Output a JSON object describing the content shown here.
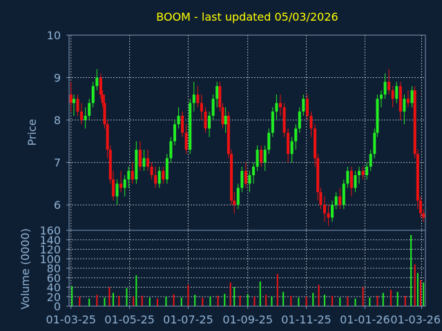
{
  "title": "BOOM - last updated 05/03/2026",
  "colors": {
    "background": "#0f1f33",
    "up": "#22ee22",
    "down": "#ee1111",
    "title": "#ffff00",
    "axis_text": "#8fb2d4"
  },
  "chart_data": [
    {
      "type": "candlestick",
      "ylabel": "Price",
      "ylim": [
        5.4,
        10
      ],
      "yticks": [
        "10",
        "9",
        "8",
        "7",
        "6"
      ],
      "grid": true,
      "ohlc": [
        [
          "2025-03-01",
          8.6,
          8.9,
          8.2,
          8.4
        ],
        [
          "2025-03-04",
          8.4,
          8.6,
          8.1,
          8.5
        ],
        [
          "2025-03-08",
          8.5,
          8.6,
          8.1,
          8.2
        ],
        [
          "2025-03-12",
          8.2,
          8.4,
          7.9,
          8.0
        ],
        [
          "2025-03-16",
          8.0,
          8.3,
          7.8,
          8.1
        ],
        [
          "2025-03-20",
          8.1,
          8.5,
          8.0,
          8.4
        ],
        [
          "2025-03-24",
          8.4,
          8.9,
          8.3,
          8.8
        ],
        [
          "2025-03-28",
          8.8,
          9.2,
          8.7,
          9.0
        ],
        [
          "2025-04-01",
          9.0,
          9.1,
          8.5,
          8.6
        ],
        [
          "2025-04-03",
          8.6,
          8.7,
          8.3,
          8.4
        ],
        [
          "2025-04-05",
          8.4,
          8.6,
          7.8,
          7.9
        ],
        [
          "2025-04-08",
          7.9,
          8.0,
          7.1,
          7.3
        ],
        [
          "2025-04-11",
          7.3,
          7.4,
          6.5,
          6.6
        ],
        [
          "2025-04-14",
          6.6,
          6.8,
          6.1,
          6.2
        ],
        [
          "2025-04-18",
          6.2,
          6.6,
          6.0,
          6.5
        ],
        [
          "2025-04-22",
          6.5,
          6.8,
          6.3,
          6.4
        ],
        [
          "2025-04-26",
          6.4,
          6.7,
          6.2,
          6.6
        ],
        [
          "2025-04-30",
          6.6,
          6.9,
          6.4,
          6.8
        ],
        [
          "2025-05-04",
          6.8,
          7.0,
          6.5,
          6.6
        ],
        [
          "2025-05-08",
          6.6,
          7.5,
          6.5,
          7.3
        ],
        [
          "2025-05-12",
          7.3,
          7.5,
          6.8,
          6.9
        ],
        [
          "2025-05-16",
          6.9,
          7.3,
          6.8,
          7.1
        ],
        [
          "2025-05-20",
          7.1,
          7.3,
          6.8,
          6.9
        ],
        [
          "2025-05-24",
          6.9,
          7.0,
          6.6,
          6.7
        ],
        [
          "2025-05-28",
          6.7,
          6.9,
          6.4,
          6.5
        ],
        [
          "2025-06-01",
          6.5,
          6.9,
          6.4,
          6.8
        ],
        [
          "2025-06-05",
          6.8,
          6.9,
          6.5,
          6.6
        ],
        [
          "2025-06-09",
          6.6,
          7.2,
          6.5,
          7.1
        ],
        [
          "2025-06-13",
          7.1,
          7.6,
          7.0,
          7.5
        ],
        [
          "2025-06-17",
          7.5,
          8.0,
          7.4,
          7.9
        ],
        [
          "2025-06-21",
          7.9,
          8.3,
          7.8,
          8.1
        ],
        [
          "2025-06-25",
          8.1,
          8.2,
          7.6,
          7.7
        ],
        [
          "2025-06-29",
          7.7,
          7.9,
          7.2,
          7.3
        ],
        [
          "2025-07-03",
          7.3,
          8.5,
          7.2,
          8.4
        ],
        [
          "2025-07-07",
          8.4,
          8.9,
          8.2,
          8.6
        ],
        [
          "2025-07-11",
          8.6,
          8.8,
          8.3,
          8.4
        ],
        [
          "2025-07-15",
          8.4,
          8.6,
          8.0,
          8.2
        ],
        [
          "2025-07-19",
          8.2,
          8.3,
          7.7,
          7.8
        ],
        [
          "2025-07-23",
          7.8,
          8.2,
          7.6,
          8.1
        ],
        [
          "2025-07-27",
          8.1,
          8.6,
          8.0,
          8.5
        ],
        [
          "2025-07-31",
          8.5,
          8.9,
          8.3,
          8.8
        ],
        [
          "2025-08-03",
          8.8,
          8.9,
          8.2,
          8.3
        ],
        [
          "2025-08-06",
          8.3,
          8.4,
          7.8,
          7.9
        ],
        [
          "2025-08-09",
          7.9,
          8.3,
          7.7,
          8.1
        ],
        [
          "2025-08-12",
          8.1,
          8.2,
          7.1,
          7.2
        ],
        [
          "2025-08-15",
          7.2,
          7.3,
          6.0,
          6.1
        ],
        [
          "2025-08-18",
          6.1,
          6.3,
          5.8,
          6.0
        ],
        [
          "2025-08-22",
          6.0,
          6.5,
          5.9,
          6.4
        ],
        [
          "2025-08-26",
          6.4,
          6.9,
          6.3,
          6.8
        ],
        [
          "2025-08-30",
          6.8,
          7.0,
          6.4,
          6.5
        ],
        [
          "2025-09-03",
          6.5,
          6.8,
          6.3,
          6.7
        ],
        [
          "2025-09-07",
          6.7,
          7.0,
          6.5,
          6.9
        ],
        [
          "2025-09-11",
          6.9,
          7.4,
          6.8,
          7.3
        ],
        [
          "2025-09-15",
          7.3,
          7.4,
          6.9,
          7.0
        ],
        [
          "2025-09-19",
          7.0,
          7.4,
          6.8,
          7.3
        ],
        [
          "2025-09-23",
          7.3,
          7.8,
          7.2,
          7.7
        ],
        [
          "2025-09-27",
          7.7,
          8.3,
          7.6,
          8.2
        ],
        [
          "2025-10-01",
          8.2,
          8.6,
          8.0,
          8.4
        ],
        [
          "2025-10-05",
          8.4,
          8.6,
          8.1,
          8.3
        ],
        [
          "2025-10-09",
          8.3,
          8.4,
          7.6,
          7.7
        ],
        [
          "2025-10-13",
          7.7,
          7.8,
          7.0,
          7.2
        ],
        [
          "2025-10-17",
          7.2,
          7.6,
          7.0,
          7.5
        ],
        [
          "2025-10-21",
          7.5,
          7.9,
          7.3,
          7.8
        ],
        [
          "2025-10-25",
          7.8,
          8.3,
          7.7,
          8.2
        ],
        [
          "2025-10-29",
          8.2,
          8.6,
          8.1,
          8.5
        ],
        [
          "2025-11-02",
          8.5,
          8.6,
          8.0,
          8.1
        ],
        [
          "2025-11-06",
          8.1,
          8.2,
          7.6,
          7.8
        ],
        [
          "2025-11-10",
          7.8,
          7.9,
          6.9,
          7.1
        ],
        [
          "2025-11-13",
          7.1,
          7.2,
          6.1,
          6.3
        ],
        [
          "2025-11-16",
          6.3,
          6.4,
          5.9,
          6.0
        ],
        [
          "2025-11-20",
          6.0,
          6.2,
          5.6,
          5.8
        ],
        [
          "2025-11-24",
          5.8,
          6.0,
          5.5,
          5.7
        ],
        [
          "2025-11-28",
          5.7,
          6.1,
          5.6,
          6.0
        ],
        [
          "2025-12-02",
          6.0,
          6.3,
          5.9,
          6.2
        ],
        [
          "2025-12-06",
          6.2,
          6.4,
          5.9,
          6.0
        ],
        [
          "2025-12-10",
          6.0,
          6.6,
          5.9,
          6.5
        ],
        [
          "2025-12-14",
          6.5,
          6.9,
          6.4,
          6.8
        ],
        [
          "2025-12-18",
          6.8,
          6.9,
          6.2,
          6.4
        ],
        [
          "2025-12-22",
          6.4,
          6.8,
          6.3,
          6.7
        ],
        [
          "2025-12-26",
          6.7,
          6.9,
          6.5,
          6.8
        ],
        [
          "2025-12-30",
          6.8,
          6.9,
          6.6,
          6.7
        ],
        [
          "2026-01-03",
          6.7,
          7.0,
          6.6,
          6.9
        ],
        [
          "2026-01-07",
          6.9,
          7.3,
          6.8,
          7.2
        ],
        [
          "2026-01-11",
          7.2,
          7.8,
          7.1,
          7.7
        ],
        [
          "2026-01-14",
          7.7,
          8.6,
          7.6,
          8.5
        ],
        [
          "2026-01-18",
          8.5,
          8.7,
          8.3,
          8.6
        ],
        [
          "2026-01-22",
          8.6,
          9.1,
          8.5,
          8.9
        ],
        [
          "2026-01-26",
          8.9,
          9.2,
          8.6,
          8.7
        ],
        [
          "2026-01-30",
          8.7,
          8.8,
          8.3,
          8.5
        ],
        [
          "2026-02-03",
          8.5,
          8.9,
          8.4,
          8.8
        ],
        [
          "2026-02-07",
          8.8,
          8.9,
          8.0,
          8.2
        ],
        [
          "2026-02-11",
          8.2,
          8.6,
          7.9,
          8.5
        ],
        [
          "2026-02-15",
          8.5,
          8.7,
          8.3,
          8.4
        ],
        [
          "2026-02-19",
          8.4,
          8.8,
          8.3,
          8.7
        ],
        [
          "2026-02-22",
          8.7,
          8.8,
          7.1,
          7.2
        ],
        [
          "2026-02-25",
          7.2,
          7.3,
          5.9,
          6.1
        ],
        [
          "2026-02-28",
          6.1,
          6.2,
          5.7,
          5.8
        ],
        [
          "2026-03-03",
          5.8,
          5.9,
          5.6,
          5.7
        ]
      ]
    },
    {
      "type": "bar",
      "ylabel": "Volume (0000)",
      "ylim": [
        0,
        160
      ],
      "yticks": [
        "160",
        "140",
        "120",
        "100",
        "80",
        "60",
        "40",
        "20",
        "0"
      ],
      "grid": true,
      "xticks": [
        "01-03-25",
        "01-05-25",
        "01-07-25",
        "01-09-25",
        "01-11-25",
        "01-01-26",
        "01-03-26"
      ],
      "volume": [
        [
          "2025-03-02",
          42
        ],
        [
          "2025-03-10",
          20
        ],
        [
          "2025-03-20",
          16
        ],
        [
          "2025-03-28",
          24
        ],
        [
          "2025-04-05",
          18
        ],
        [
          "2025-04-10",
          40
        ],
        [
          "2025-04-14",
          28
        ],
        [
          "2025-04-20",
          22
        ],
        [
          "2025-04-28",
          38
        ],
        [
          "2025-05-05",
          20
        ],
        [
          "2025-05-08",
          65
        ],
        [
          "2025-05-14",
          22
        ],
        [
          "2025-05-22",
          18
        ],
        [
          "2025-05-30",
          16
        ],
        [
          "2025-06-08",
          20
        ],
        [
          "2025-06-16",
          25
        ],
        [
          "2025-06-24",
          18
        ],
        [
          "2025-07-01",
          45
        ],
        [
          "2025-07-08",
          24
        ],
        [
          "2025-07-16",
          18
        ],
        [
          "2025-07-24",
          20
        ],
        [
          "2025-08-01",
          22
        ],
        [
          "2025-08-08",
          26
        ],
        [
          "2025-08-14",
          50
        ],
        [
          "2025-08-18",
          40
        ],
        [
          "2025-08-24",
          22
        ],
        [
          "2025-09-01",
          25
        ],
        [
          "2025-09-08",
          20
        ],
        [
          "2025-09-14",
          52
        ],
        [
          "2025-09-20",
          24
        ],
        [
          "2025-09-26",
          20
        ],
        [
          "2025-10-02",
          68
        ],
        [
          "2025-10-08",
          30
        ],
        [
          "2025-10-16",
          22
        ],
        [
          "2025-10-24",
          18
        ],
        [
          "2025-11-01",
          20
        ],
        [
          "2025-11-08",
          28
        ],
        [
          "2025-11-14",
          45
        ],
        [
          "2025-11-20",
          24
        ],
        [
          "2025-11-28",
          22
        ],
        [
          "2025-12-06",
          18
        ],
        [
          "2025-12-14",
          20
        ],
        [
          "2025-12-22",
          16
        ],
        [
          "2025-12-30",
          40
        ],
        [
          "2026-01-06",
          18
        ],
        [
          "2026-01-14",
          22
        ],
        [
          "2026-01-20",
          28
        ],
        [
          "2026-01-28",
          34
        ],
        [
          "2026-02-04",
          30
        ],
        [
          "2026-02-12",
          22
        ],
        [
          "2026-02-18",
          150
        ],
        [
          "2026-02-22",
          88
        ],
        [
          "2026-02-25",
          70
        ],
        [
          "2026-02-28",
          55
        ],
        [
          "2026-03-03",
          50
        ]
      ]
    }
  ]
}
